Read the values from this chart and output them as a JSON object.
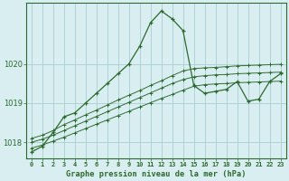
{
  "xlabel": "Graphe pression niveau de la mer (hPa)",
  "hours": [
    0,
    1,
    2,
    3,
    4,
    5,
    6,
    7,
    8,
    9,
    10,
    11,
    12,
    13,
    14,
    15,
    16,
    17,
    18,
    19,
    20,
    21,
    22,
    23
  ],
  "curve_main": [
    1017.75,
    1017.9,
    1018.25,
    1018.65,
    1018.75,
    1019.0,
    1019.25,
    1019.5,
    1019.75,
    1020.0,
    1020.45,
    1021.05,
    1021.35,
    1021.15,
    1020.85,
    1019.45,
    1019.25,
    1019.3,
    1019.35,
    1019.55,
    1019.05,
    1019.1,
    1019.55,
    1019.75
  ],
  "curve_trend_hi": [
    1018.1,
    1018.18,
    1018.3,
    1018.45,
    1018.57,
    1018.7,
    1018.82,
    1018.95,
    1019.08,
    1019.2,
    1019.32,
    1019.45,
    1019.57,
    1019.7,
    1019.82,
    1019.88,
    1019.9,
    1019.91,
    1019.93,
    1019.95,
    1019.96,
    1019.97,
    1019.98,
    1019.99
  ],
  "curve_trend_mid": [
    1018.0,
    1018.08,
    1018.18,
    1018.3,
    1018.42,
    1018.54,
    1018.66,
    1018.78,
    1018.9,
    1019.02,
    1019.14,
    1019.26,
    1019.38,
    1019.5,
    1019.6,
    1019.67,
    1019.7,
    1019.72,
    1019.73,
    1019.75,
    1019.76,
    1019.77,
    1019.78,
    1019.79
  ],
  "curve_trend_lo": [
    1017.85,
    1017.93,
    1018.03,
    1018.13,
    1018.24,
    1018.35,
    1018.46,
    1018.57,
    1018.68,
    1018.79,
    1018.9,
    1019.01,
    1019.12,
    1019.22,
    1019.33,
    1019.43,
    1019.47,
    1019.49,
    1019.5,
    1019.52,
    1019.53,
    1019.54,
    1019.55,
    1019.56
  ],
  "line_color": "#2d6a2d",
  "bg_color": "#d8eef0",
  "grid_color": "#aacdd2",
  "ylim": [
    1017.6,
    1021.55
  ],
  "yticks": [
    1018,
    1019,
    1020
  ],
  "xtick_labels": [
    "0",
    "1",
    "2",
    "3",
    "4",
    "5",
    "6",
    "7",
    "8",
    "9",
    "10",
    "11",
    "12",
    "13",
    "14",
    "15",
    "16",
    "17",
    "18",
    "19",
    "20",
    "21",
    "22",
    "23"
  ]
}
